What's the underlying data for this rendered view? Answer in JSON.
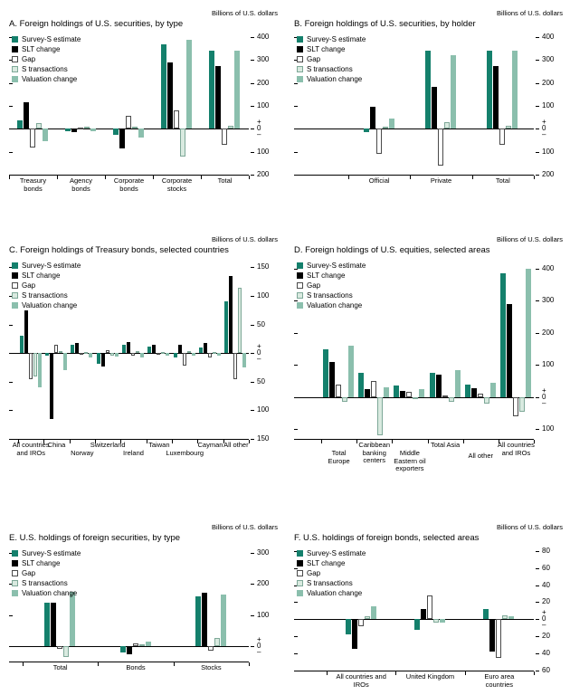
{
  "page": {
    "background": "#ffffff"
  },
  "palette": {
    "Survey-S estimate": {
      "fill": "#14806c"
    },
    "SLT change": {
      "fill": "#000000"
    },
    "Gap": {
      "fill": "#ffffff",
      "stroke": "#4a4a4a"
    },
    "S transactions": {
      "fill": "#d9eae0",
      "stroke": "#7ea898"
    },
    "Valuation change": {
      "fill": "#8bbfad"
    }
  },
  "chart_data": [
    {
      "id": "A",
      "type": "bar",
      "title": "A. Foreign holdings of U.S. securities, by type",
      "unit_label": "Billions of U.S. dollars",
      "ylim": [
        -200,
        420
      ],
      "yticks": [
        400,
        300,
        200,
        100,
        0,
        -100,
        -200
      ],
      "x_inset": 0,
      "label_box_pad": -6,
      "label_offsets": [
        0,
        0,
        0,
        0,
        0
      ],
      "categories": [
        "Treasury bonds",
        "Agency bonds",
        "Corporate bonds",
        "Corporate stocks",
        "Total"
      ],
      "series": [
        {
          "name": "Survey-S estimate",
          "values": [
            35,
            -10,
            -25,
            370,
            340
          ]
        },
        {
          "name": "SLT change",
          "values": [
            115,
            -15,
            -85,
            290,
            275
          ]
        },
        {
          "name": "Gap",
          "values": [
            -80,
            5,
            55,
            80,
            -70
          ]
        },
        {
          "name": "S transactions",
          "values": [
            25,
            8,
            10,
            -120,
            15
          ]
        },
        {
          "name": "Valuation change",
          "values": [
            -55,
            -12,
            -40,
            390,
            340
          ]
        }
      ]
    },
    {
      "id": "B",
      "type": "bar",
      "title": "B. Foreign holdings of U.S. securities, by holder",
      "unit_label": "Billions of U.S. dollars",
      "ylim": [
        -200,
        420
      ],
      "yticks": [
        400,
        300,
        200,
        100,
        0,
        -100,
        -200
      ],
      "x_inset": 60,
      "label_box_pad": -10,
      "label_offsets": [
        0,
        0,
        0
      ],
      "categories": [
        "Official",
        "Private",
        "Total"
      ],
      "series": [
        {
          "name": "Survey-S estimate",
          "values": [
            -15,
            340,
            340
          ]
        },
        {
          "name": "SLT change",
          "values": [
            95,
            185,
            275
          ]
        },
        {
          "name": "Gap",
          "values": [
            -110,
            -160,
            -70
          ]
        },
        {
          "name": "S transactions",
          "values": [
            10,
            30,
            15
          ]
        },
        {
          "name": "Valuation change",
          "values": [
            45,
            320,
            340
          ]
        }
      ]
    },
    {
      "id": "C",
      "type": "bar",
      "title": "C. Foreign holdings of Treasury bonds, selected countries",
      "unit_label": "Billions of U.S. dollars",
      "ylim": [
        -150,
        165
      ],
      "yticks": [
        150,
        100,
        50,
        0,
        -50,
        -100,
        -150
      ],
      "x_inset": 10,
      "label_box_pad": 20,
      "label_offsets": [
        0,
        0,
        9,
        0,
        9,
        0,
        9,
        0,
        0
      ],
      "categories": [
        "All countries and IROs",
        "China",
        "Norway",
        "Switzerland",
        "Ireland",
        "Taiwan",
        "Luxembourg",
        "Cayman",
        "All other"
      ],
      "series": [
        {
          "name": "Survey-S estimate",
          "values": [
            30,
            -5,
            14,
            -18,
            15,
            12,
            -8,
            10,
            90
          ]
        },
        {
          "name": "SLT change",
          "values": [
            75,
            -115,
            17,
            -24,
            20,
            15,
            14,
            18,
            135
          ]
        },
        {
          "name": "Gap",
          "values": [
            -45,
            15,
            -3,
            5,
            -5,
            -3,
            -22,
            -8,
            -45
          ]
        },
        {
          "name": "S transactions",
          "values": [
            -40,
            4,
            2,
            -4,
            3,
            2,
            3,
            2,
            115
          ]
        },
        {
          "name": "Valuation change",
          "values": [
            -60,
            -30,
            -8,
            -6,
            -8,
            -5,
            -5,
            -5,
            -25
          ]
        }
      ]
    },
    {
      "id": "D",
      "type": "bar",
      "title": "D. Foreign holdings of U.S. equities, selected areas",
      "unit_label": "Billions of U.S. dollars",
      "ylim": [
        -130,
        430
      ],
      "yticks": [
        400,
        300,
        200,
        100,
        0,
        -100
      ],
      "x_inset": 30,
      "label_box_pad": 2,
      "label_offsets": [
        9,
        0,
        9,
        0,
        12,
        0
      ],
      "categories": [
        "Total Europe",
        "Caribbean banking centers",
        "Middle Eastern oil exporters",
        "Total Asia",
        "All other",
        "All countries and IROs"
      ],
      "series": [
        {
          "name": "Survey-S estimate",
          "values": [
            150,
            75,
            35,
            75,
            40,
            385
          ]
        },
        {
          "name": "SLT change",
          "values": [
            110,
            25,
            20,
            70,
            28,
            290
          ]
        },
        {
          "name": "Gap",
          "values": [
            40,
            50,
            15,
            5,
            12,
            -60
          ]
        },
        {
          "name": "S transactions",
          "values": [
            -15,
            -120,
            -5,
            -15,
            -20,
            -45
          ]
        },
        {
          "name": "Valuation change",
          "values": [
            160,
            30,
            25,
            85,
            45,
            400
          ]
        }
      ]
    },
    {
      "id": "E",
      "type": "bar",
      "title": "E. U.S. holdings of foreign securities, by type",
      "unit_label": "Billions of U.S. dollars",
      "ylim": [
        -50,
        320
      ],
      "yticks": [
        300,
        200,
        100,
        0
      ],
      "x_inset": 15,
      "label_box_pad": -20,
      "label_offsets": [
        0,
        0,
        0
      ],
      "categories": [
        "Total",
        "Bonds",
        "Stocks"
      ],
      "series": [
        {
          "name": "Survey-S estimate",
          "values": [
            140,
            -20,
            160
          ]
        },
        {
          "name": "SLT change",
          "values": [
            140,
            -28,
            172
          ]
        },
        {
          "name": "Gap",
          "values": [
            -8,
            8,
            -15
          ]
        },
        {
          "name": "S transactions",
          "values": [
            -35,
            5,
            25
          ]
        },
        {
          "name": "Valuation change",
          "values": [
            175,
            15,
            165
          ]
        }
      ]
    },
    {
      "id": "F",
      "type": "bar",
      "title": "F. U.S. holdings of foreign bonds, selected areas",
      "unit_label": "Billions of U.S. dollars",
      "ylim": [
        -60,
        85
      ],
      "yticks": [
        80,
        60,
        40,
        20,
        0,
        -20,
        -40,
        -60
      ],
      "x_inset": 36,
      "label_box_pad": -20,
      "label_offsets": [
        0,
        0,
        0
      ],
      "categories": [
        "All countries and IROs",
        "United Kingdom",
        "Euro area countries"
      ],
      "series": [
        {
          "name": "Survey-S estimate",
          "values": [
            -18,
            -12,
            12
          ]
        },
        {
          "name": "SLT change",
          "values": [
            -35,
            12,
            -38
          ]
        },
        {
          "name": "Gap",
          "values": [
            -8,
            28,
            -45
          ]
        },
        {
          "name": "S transactions",
          "values": [
            4,
            -4,
            5
          ]
        },
        {
          "name": "Valuation change",
          "values": [
            15,
            -4,
            3
          ]
        }
      ]
    }
  ]
}
